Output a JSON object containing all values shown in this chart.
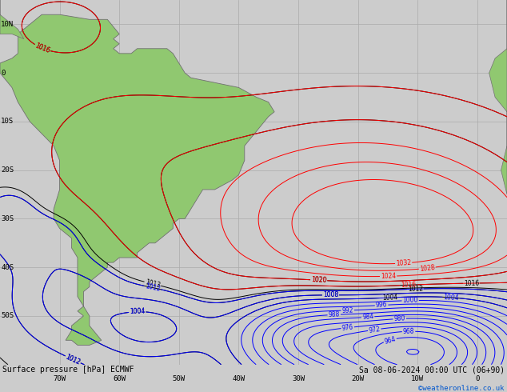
{
  "title_left": "Surface pressure [hPa] ECMWF",
  "title_right": "Sa 08-06-2024 00:00 UTC (06+90)",
  "credit": "©weatheronline.co.uk",
  "ocean_color": "#d8d8d8",
  "land_color": "#90c870",
  "border_color": "#808080",
  "grid_color": "#aaaaaa",
  "fig_width": 6.34,
  "fig_height": 4.9,
  "dpi": 100,
  "lon_min": -80,
  "lon_max": 5,
  "lat_min": -60,
  "lat_max": 15,
  "label_fontsize": 6.5,
  "title_fontsize": 7.0,
  "credit_fontsize": 6.5,
  "grid_lons": [
    -70,
    -60,
    -50,
    -40,
    -30,
    -20,
    -10,
    0
  ],
  "grid_lats": [
    -50,
    -40,
    -30,
    -20,
    -10,
    0,
    10
  ],
  "tick_lons": [
    -70,
    -60,
    -50,
    -40,
    -30,
    -20,
    -10,
    0
  ],
  "tick_lons_label": [
    "70W",
    "60W",
    "50W",
    "40W",
    "30W",
    "20W",
    "10W",
    "0"
  ],
  "tick_lats": [
    -50,
    -40,
    -30,
    -20,
    -10,
    0,
    10
  ],
  "tick_lats_label": [
    "50S",
    "40S",
    "30S",
    "20S",
    "10S",
    "0",
    "10N"
  ]
}
